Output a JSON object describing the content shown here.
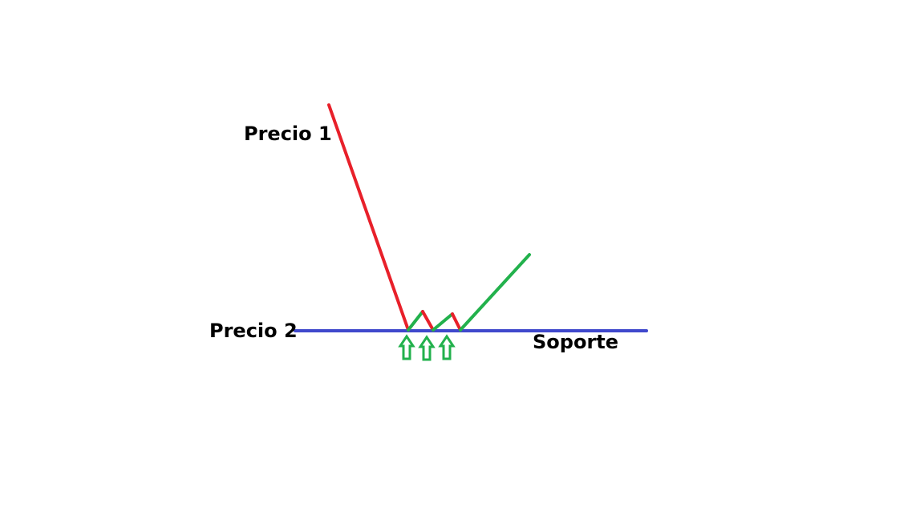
{
  "labels": {
    "price1": "Precio 1",
    "price2": "Precio 2",
    "support": "Soporte"
  },
  "colors": {
    "decline": "#e8202a",
    "rise": "#22b14c",
    "support": "#3f48cc",
    "text": "#000000"
  },
  "arrows": {
    "count": 3,
    "icon": "up-arrow-icon"
  }
}
